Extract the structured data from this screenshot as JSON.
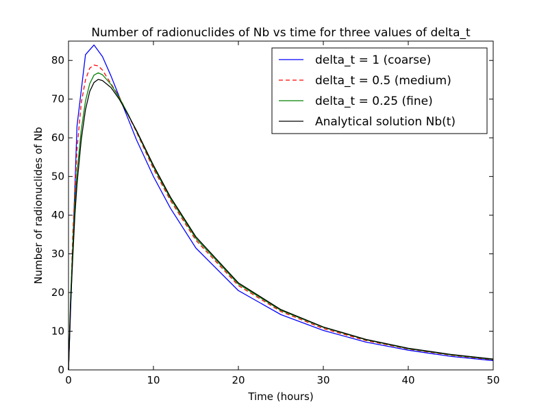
{
  "chart_data": {
    "type": "line",
    "title": "Number of radionuclides of Nb vs time for three values of delta_t",
    "xlabel": "Time (hours)",
    "ylabel": "Number of radionuclides of Nb",
    "xlim": [
      0,
      50
    ],
    "ylim": [
      0,
      85
    ],
    "xticks": [
      0,
      10,
      20,
      30,
      40,
      50
    ],
    "yticks": [
      0,
      10,
      20,
      30,
      40,
      50,
      60,
      70,
      80
    ],
    "grid": false,
    "legend_position": "top-right",
    "series": [
      {
        "name": "delta_t = 1 (coarse)",
        "color": "#0000ff",
        "dash": "solid",
        "x": [
          0,
          1,
          2,
          3,
          4,
          5,
          6,
          7,
          8,
          10,
          12,
          15,
          20,
          25,
          30,
          35,
          40,
          45,
          50
        ],
        "y": [
          0,
          63,
          81.5,
          84,
          81,
          76,
          70.5,
          65,
          59.5,
          50,
          41.8,
          31.5,
          20.5,
          14.3,
          10.2,
          7.2,
          5.1,
          3.5,
          2.4
        ]
      },
      {
        "name": "delta_t = 0.5 (medium)",
        "color": "#ff0000",
        "dash": "dashed",
        "x": [
          0,
          0.5,
          1,
          1.5,
          2,
          2.5,
          3,
          3.5,
          4,
          5,
          6,
          7,
          8,
          10,
          12,
          15,
          20,
          25,
          30,
          35,
          40,
          45,
          50
        ],
        "y": [
          0,
          35,
          57,
          69,
          75,
          78,
          78.8,
          78.6,
          77.5,
          74,
          70.5,
          66,
          61.5,
          52,
          43.8,
          33.5,
          21.8,
          15.1,
          10.7,
          7.6,
          5.4,
          3.8,
          2.6
        ]
      },
      {
        "name": "delta_t = 0.25 (fine)",
        "color": "#008000",
        "dash": "solid",
        "x": [
          0,
          0.25,
          0.5,
          0.75,
          1,
          1.5,
          2,
          2.5,
          3,
          3.5,
          4,
          5,
          6,
          7,
          8,
          10,
          12,
          15,
          20,
          25,
          30,
          35,
          40,
          45,
          50
        ],
        "y": [
          0,
          19,
          32,
          43,
          51,
          62,
          69.5,
          74,
          76.2,
          76.8,
          76.3,
          73.8,
          70.3,
          66.2,
          61.7,
          52.5,
          44.3,
          34,
          22.2,
          15.4,
          11,
          7.8,
          5.5,
          3.9,
          2.7
        ]
      },
      {
        "name": "Analytical solution Nb(t)",
        "color": "#000000",
        "dash": "solid",
        "x": [
          0,
          0.25,
          0.5,
          0.75,
          1,
          1.5,
          2,
          2.5,
          3,
          3.5,
          4,
          5,
          6,
          7,
          8,
          10,
          12,
          15,
          20,
          25,
          30,
          35,
          40,
          45,
          50
        ],
        "y": [
          0,
          17,
          29,
          40,
          48,
          59.5,
          67.3,
          72,
          74.3,
          75.1,
          74.8,
          73,
          69.9,
          66,
          61.9,
          52.9,
          44.7,
          34.4,
          22.5,
          15.6,
          11.1,
          7.9,
          5.6,
          4,
          2.8
        ]
      }
    ]
  }
}
